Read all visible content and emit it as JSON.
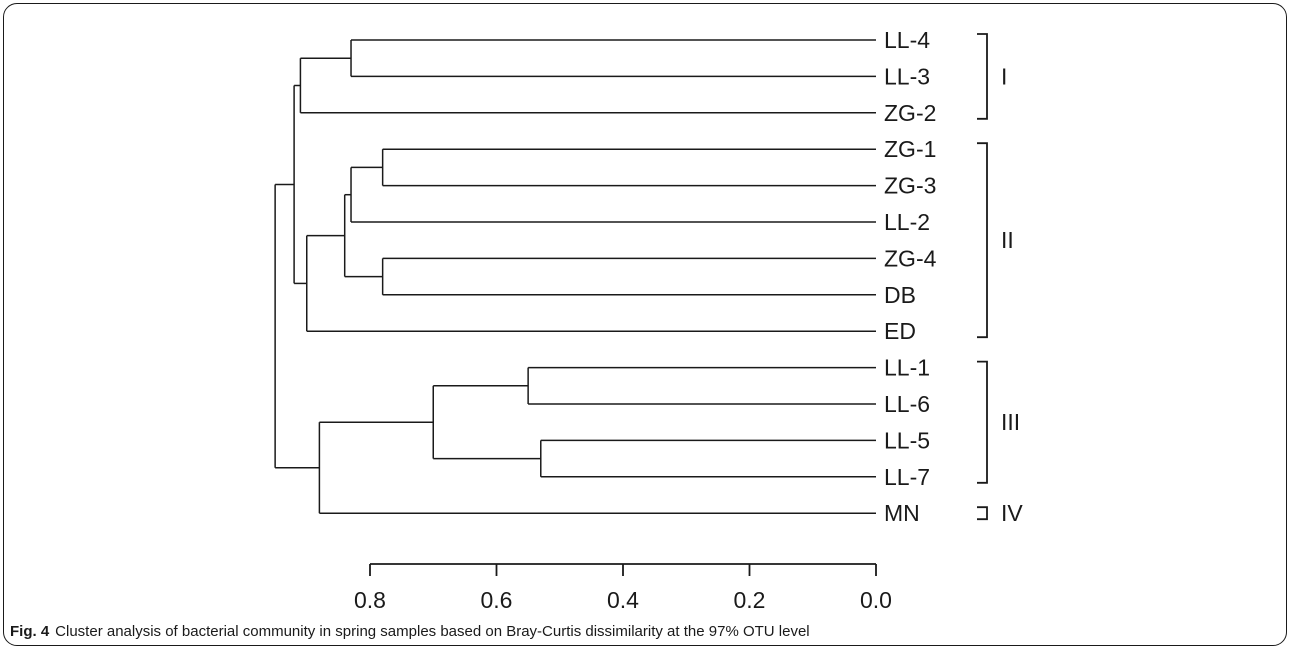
{
  "chart_data": {
    "type": "dendrogram",
    "leaves": [
      "LL-4",
      "LL-3",
      "ZG-2",
      "ZG-1",
      "ZG-3",
      "LL-2",
      "ZG-4",
      "DB",
      "ED",
      "LL-1",
      "LL-6",
      "LL-5",
      "LL-7",
      "MN"
    ],
    "merges": [
      {
        "id": "m1",
        "children": [
          "LL-4",
          "LL-3"
        ],
        "height": 0.83
      },
      {
        "id": "m2",
        "children": [
          "m1",
          "ZG-2"
        ],
        "height": 0.91
      },
      {
        "id": "m3",
        "children": [
          "ZG-1",
          "ZG-3"
        ],
        "height": 0.78
      },
      {
        "id": "m4",
        "children": [
          "m3",
          "LL-2"
        ],
        "height": 0.83
      },
      {
        "id": "m5",
        "children": [
          "ZG-4",
          "DB"
        ],
        "height": 0.78
      },
      {
        "id": "m6",
        "children": [
          "m4",
          "m5"
        ],
        "height": 0.84
      },
      {
        "id": "m7",
        "children": [
          "m6",
          "ED"
        ],
        "height": 0.9
      },
      {
        "id": "m8",
        "children": [
          "m2",
          "m7"
        ],
        "height": 0.92
      },
      {
        "id": "m9",
        "children": [
          "LL-1",
          "LL-6"
        ],
        "height": 0.55
      },
      {
        "id": "m10",
        "children": [
          "LL-5",
          "LL-7"
        ],
        "height": 0.53
      },
      {
        "id": "m11",
        "children": [
          "m9",
          "m10"
        ],
        "height": 0.7
      },
      {
        "id": "m12",
        "children": [
          "m11",
          "MN"
        ],
        "height": 0.88
      },
      {
        "id": "m13",
        "children": [
          "m8",
          "m12"
        ],
        "height": 0.95
      }
    ],
    "groups": [
      {
        "label": "I",
        "members": [
          "LL-4",
          "LL-3",
          "ZG-2"
        ]
      },
      {
        "label": "II",
        "members": [
          "ZG-1",
          "ZG-3",
          "LL-2",
          "ZG-4",
          "DB",
          "ED"
        ]
      },
      {
        "label": "III",
        "members": [
          "LL-1",
          "LL-6",
          "LL-5",
          "LL-7"
        ]
      },
      {
        "label": "IV",
        "members": [
          "MN"
        ]
      }
    ],
    "xaxis": {
      "ticks": [
        0.8,
        0.6,
        0.4,
        0.2,
        0.0
      ],
      "tick_labels": [
        "0.8",
        "0.6",
        "0.4",
        "0.2",
        "0.0"
      ],
      "range": [
        0.0,
        0.8
      ],
      "reversed": true
    }
  },
  "caption": {
    "label": "Fig. 4",
    "text": "Cluster analysis of bacterial community in spring samples based on Bray-Curtis dissimilarity at the 97% OTU level"
  }
}
